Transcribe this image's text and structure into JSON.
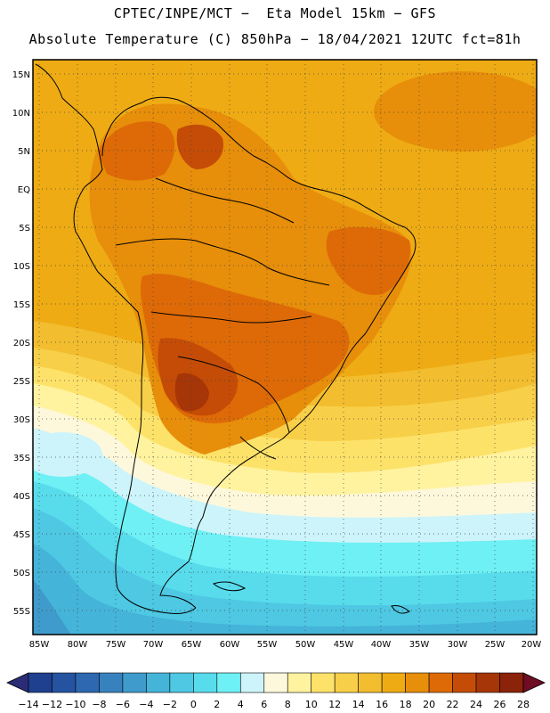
{
  "header": {
    "line1": "CPTEC/INPE/MCT −  Eta Model 15km − GFS",
    "line2": "Absolute Temperature (C) 850hPa − 18/04/2021 12UTC fct=81h"
  },
  "map": {
    "lat_labels": [
      "15N",
      "10N",
      "5N",
      "EQ",
      "5S",
      "10S",
      "15S",
      "20S",
      "25S",
      "30S",
      "35S",
      "40S",
      "45S",
      "50S",
      "55S"
    ],
    "lon_labels": [
      "85W",
      "80W",
      "75W",
      "70W",
      "65W",
      "60W",
      "55W",
      "50W",
      "45W",
      "40W",
      "35W",
      "30W",
      "25W",
      "20W"
    ]
  },
  "colorbar": {
    "tick_labels": [
      "-14",
      "-12",
      "-10",
      "-8",
      "-6",
      "-4",
      "-2",
      "0",
      "2",
      "4",
      "6",
      "8",
      "10",
      "12",
      "14",
      "16",
      "18",
      "20",
      "22",
      "24",
      "26",
      "28"
    ],
    "colors": [
      "#1f3f8f",
      "#2553a0",
      "#2d68b0",
      "#3782be",
      "#3f9bcc",
      "#45b4d9",
      "#4ec8e3",
      "#58dcec",
      "#6ef0f4",
      "#ccf4fa",
      "#fdf8dc",
      "#fff3a0",
      "#fde26a",
      "#f8cf48",
      "#f2bd2e",
      "#eeab14",
      "#e78e0a",
      "#dd6a07",
      "#c44c06",
      "#a63508",
      "#8a2309"
    ],
    "end_low": "#2a2c77",
    "end_high": "#6e0d24"
  }
}
